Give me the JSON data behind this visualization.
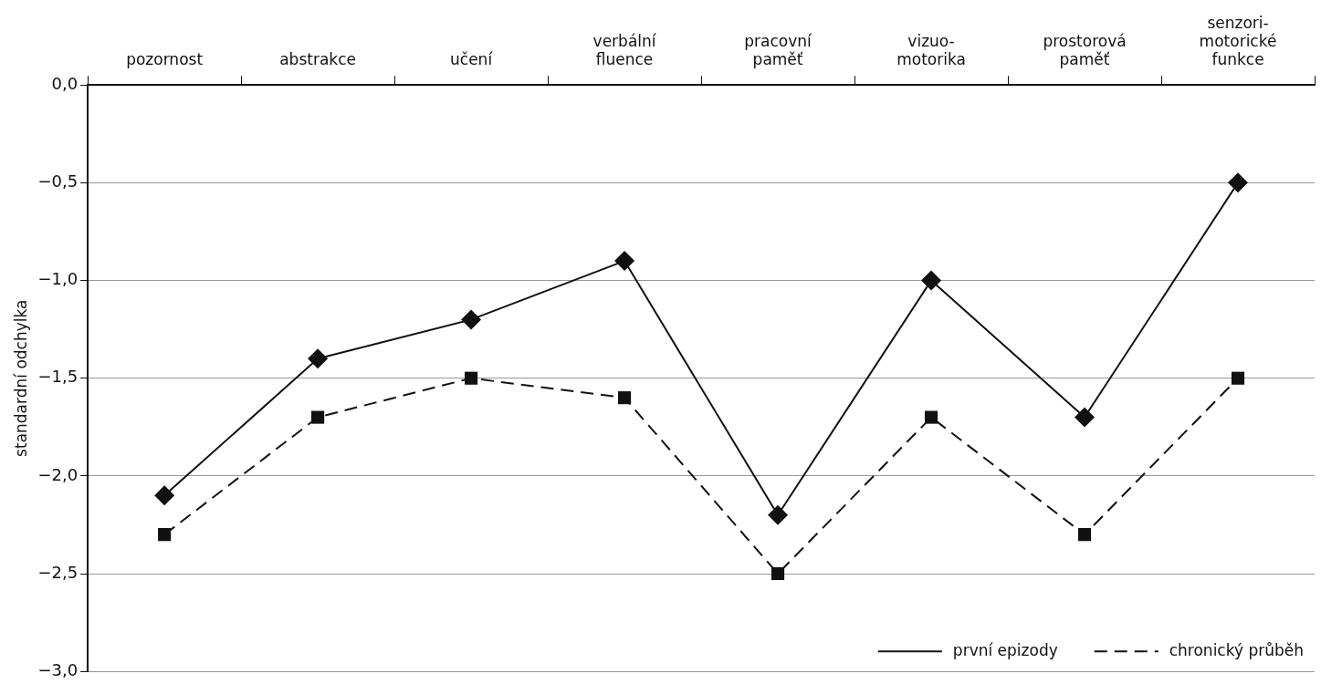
{
  "chart_data": {
    "type": "line",
    "ylabel": "standardní odchylka",
    "categories": [
      "pozornost",
      "abstrakce",
      "učení",
      "verbální\nfluence",
      "pracovní\npaměť",
      "vizuo-\nmotorika",
      "prostorová\npaměť",
      "senzori-\nmotorické\nfunkce"
    ],
    "series": [
      {
        "name": "první epizody",
        "color": "#111111",
        "marker": "diamond",
        "line_style": "solid",
        "values": [
          -2.1,
          -1.4,
          -1.2,
          -0.9,
          -2.2,
          -1.0,
          -1.7,
          -0.5
        ]
      },
      {
        "name": "chronický průběh",
        "color": "#111111",
        "marker": "square",
        "line_style": "dashed",
        "values": [
          -2.3,
          -1.7,
          -1.5,
          -1.6,
          -2.5,
          -1.7,
          -2.3,
          -1.5
        ]
      }
    ],
    "ylim": [
      -3,
      0
    ],
    "yticks": [
      {
        "value": 0,
        "label": "0,0"
      },
      {
        "value": -0.5,
        "label": "−0,5"
      },
      {
        "value": -1,
        "label": "−1,0"
      },
      {
        "value": -1.5,
        "label": "−1,5"
      },
      {
        "value": -2,
        "label": "−2,0"
      },
      {
        "value": -2.5,
        "label": "−2,5"
      },
      {
        "value": -3,
        "label": "−3,0"
      }
    ],
    "grid": "y",
    "legend": "bottom right"
  }
}
